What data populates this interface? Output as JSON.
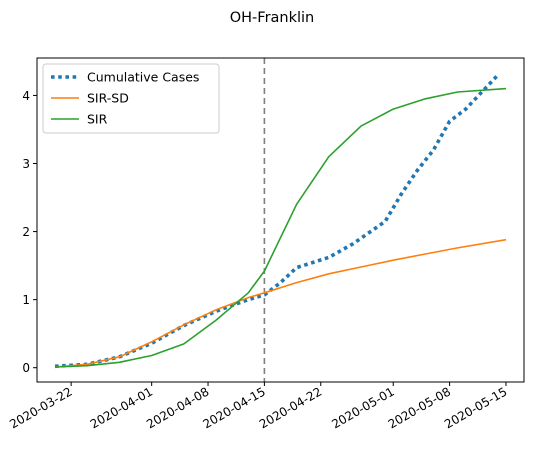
{
  "chart_data": {
    "type": "line",
    "title": "OH-Franklin",
    "xlabel": "",
    "ylabel": "",
    "x_range": [
      "2020-03-20",
      "2020-05-15"
    ],
    "ylim": [
      -0.21,
      4.55
    ],
    "x_ticks": [
      "2020-03-22",
      "2020-04-01",
      "2020-04-08",
      "2020-04-15",
      "2020-04-22",
      "2020-05-01",
      "2020-05-08",
      "2020-05-15"
    ],
    "y_ticks": [
      0,
      1,
      2,
      3,
      4
    ],
    "vline": {
      "x": "2020-04-15",
      "style": "dashed",
      "color": "#7f7f7f"
    },
    "legend_position": "top-left",
    "grid": false,
    "series": [
      {
        "name": "Cumulative Cases",
        "color": "#1f77b4",
        "style": "dotted",
        "points": [
          [
            "2020-03-20",
            0.02
          ],
          [
            "2020-03-24",
            0.05
          ],
          [
            "2020-03-28",
            0.16
          ],
          [
            "2020-04-01",
            0.36
          ],
          [
            "2020-04-05",
            0.62
          ],
          [
            "2020-04-09",
            0.83
          ],
          [
            "2020-04-13",
            1.0
          ],
          [
            "2020-04-15",
            1.07
          ],
          [
            "2020-04-17",
            1.25
          ],
          [
            "2020-04-19",
            1.47
          ],
          [
            "2020-04-23",
            1.62
          ],
          [
            "2020-04-26",
            1.82
          ],
          [
            "2020-04-30",
            2.15
          ],
          [
            "2020-05-02",
            2.55
          ],
          [
            "2020-05-04",
            2.9
          ],
          [
            "2020-05-06",
            3.2
          ],
          [
            "2020-05-08",
            3.62
          ],
          [
            "2020-05-10",
            3.8
          ],
          [
            "2020-05-12",
            4.05
          ],
          [
            "2020-05-14",
            4.3
          ]
        ]
      },
      {
        "name": "SIR-SD",
        "color": "#ff7f0e",
        "style": "solid",
        "points": [
          [
            "2020-03-20",
            0.01
          ],
          [
            "2020-03-24",
            0.05
          ],
          [
            "2020-03-28",
            0.16
          ],
          [
            "2020-04-01",
            0.38
          ],
          [
            "2020-04-05",
            0.63
          ],
          [
            "2020-04-09",
            0.85
          ],
          [
            "2020-04-13",
            1.03
          ],
          [
            "2020-04-15",
            1.1
          ],
          [
            "2020-04-19",
            1.25
          ],
          [
            "2020-04-23",
            1.38
          ],
          [
            "2020-04-27",
            1.48
          ],
          [
            "2020-05-01",
            1.58
          ],
          [
            "2020-05-05",
            1.67
          ],
          [
            "2020-05-09",
            1.76
          ],
          [
            "2020-05-15",
            1.88
          ]
        ]
      },
      {
        "name": "SIR",
        "color": "#2ca02c",
        "style": "solid",
        "points": [
          [
            "2020-03-20",
            0.01
          ],
          [
            "2020-03-24",
            0.03
          ],
          [
            "2020-03-28",
            0.08
          ],
          [
            "2020-04-01",
            0.18
          ],
          [
            "2020-04-05",
            0.35
          ],
          [
            "2020-04-09",
            0.7
          ],
          [
            "2020-04-13",
            1.1
          ],
          [
            "2020-04-15",
            1.42
          ],
          [
            "2020-04-19",
            2.4
          ],
          [
            "2020-04-23",
            3.1
          ],
          [
            "2020-04-27",
            3.55
          ],
          [
            "2020-05-01",
            3.8
          ],
          [
            "2020-05-05",
            3.95
          ],
          [
            "2020-05-09",
            4.05
          ],
          [
            "2020-05-15",
            4.1
          ]
        ]
      }
    ]
  }
}
